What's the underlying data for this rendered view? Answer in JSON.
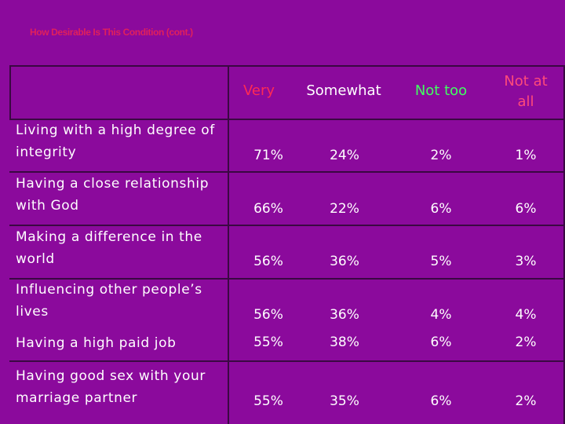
{
  "title": "How Desirable Is This Condition (cont.)",
  "colors": {
    "background": "#8b0a9c",
    "title": "#e0205c",
    "very": "#ff2a55",
    "somewhat": "#ffffff",
    "not_too": "#40ff60",
    "not_at_all": "#ff4a7a",
    "grid": "#3a0842"
  },
  "columns": {
    "very": "Very",
    "somewhat": "Somewhat",
    "not_too": "Not too",
    "not_at_all_1": "Not at",
    "not_at_all_2": "all"
  },
  "rows": [
    {
      "label": "Living with a high degree of integrity",
      "very": "71%",
      "somewhat": "24%",
      "not_too": "2%",
      "not_at_all": "1%"
    },
    {
      "label": "Having a close relationship with God",
      "very": "66%",
      "somewhat": "22%",
      "not_too": "6%",
      "not_at_all": "6%"
    },
    {
      "label": "Making a difference in the world",
      "very": "56%",
      "somewhat": "36%",
      "not_too": "5%",
      "not_at_all": "3%"
    },
    {
      "label": "Influencing other people’s lives",
      "very": "56%",
      "somewhat": "36%",
      "not_too": "4%",
      "not_at_all": "4%"
    },
    {
      "label": "Having a high paid job",
      "very": "55%",
      "somewhat": "38%",
      "not_too": "6%",
      "not_at_all": "2%"
    },
    {
      "label": "Having good sex with your marriage partner",
      "very": "55%",
      "somewhat": "35%",
      "not_too": "6%",
      "not_at_all": "2%"
    }
  ]
}
